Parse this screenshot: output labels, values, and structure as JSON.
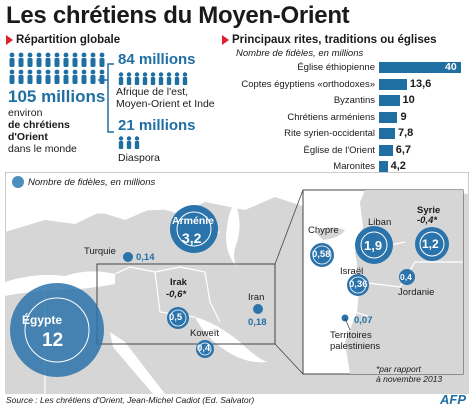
{
  "title": "Les chrétiens du Moyen-Orient",
  "left": {
    "heading": "Répartition globale",
    "total_value": "105 millions",
    "total_desc_1": "environ",
    "total_desc_2": "de chrétiens",
    "total_desc_3": "d'Orient",
    "total_desc_4": "dans le monde",
    "region_value": "84 millions",
    "region_desc_1": "Afrique de l'est,",
    "region_desc_2": "Moyen-Orient et Inde",
    "diaspora_value": "21 millions",
    "diaspora_desc": "Diaspora"
  },
  "right": {
    "heading": "Principaux rites, traditions ou églises",
    "subheading": "Nombre de fidèles, en millions"
  },
  "chart_data": {
    "type": "bar",
    "subtitle": "Nombre de fidèles, en millions",
    "categories": [
      "Église éthiopienne",
      "Coptes égyptiens «orthodoxes»",
      "Byzantins",
      "Chrétiens arméniens",
      "Rite syrien-occidental",
      "Église de l'Orient",
      "Maronites"
    ],
    "values": [
      40,
      13.6,
      10,
      9,
      7.8,
      6.7,
      4.2
    ],
    "value_labels": [
      "40",
      "13,6",
      "10",
      "9",
      "7,8",
      "6,7",
      "4,2"
    ],
    "xlim": [
      0,
      40
    ]
  },
  "map": {
    "legend": "Nombre de fidèles, en millions",
    "countries": [
      {
        "name": "Égypte",
        "value": "12"
      },
      {
        "name": "Arménie",
        "value": "3,2"
      },
      {
        "name": "Turquie",
        "value": "0,14"
      },
      {
        "name": "Irak",
        "note": "-0,6*",
        "value": "0,5"
      },
      {
        "name": "Iran",
        "value": "0,18"
      },
      {
        "name": "Koweït",
        "value": "0,4"
      },
      {
        "name": "Chypre",
        "value": "0,58"
      },
      {
        "name": "Liban",
        "value": "1,9"
      },
      {
        "name": "Syrie",
        "note": "-0,4*",
        "value": "1,2"
      },
      {
        "name": "Israël",
        "value": "0,36"
      },
      {
        "name": "Jordanie",
        "value": "0,4"
      },
      {
        "name": "Territoires palestiniens",
        "value": "0,07"
      }
    ],
    "footnote_1": "*par rapport",
    "footnote_2": "à novembre 2013"
  },
  "source": "Source : Les chrétiens d'Orient, Jean-Michel Cadiot (Ed. Salvator)",
  "agency": "AFP",
  "colors": {
    "accent": "#1f6fa3",
    "red": "#d8242b",
    "map_land": "#d9d9d9",
    "map_sea": "#ffffff"
  }
}
